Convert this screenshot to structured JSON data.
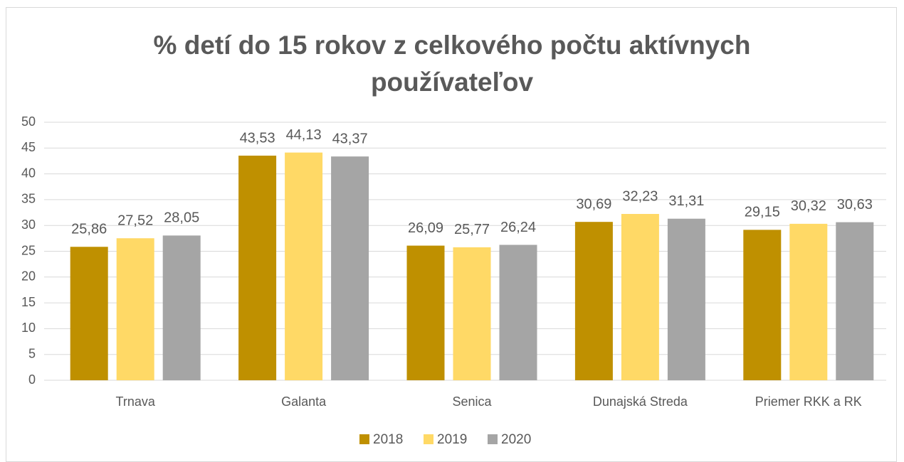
{
  "chart_data": {
    "type": "bar",
    "title": "% detí do 15 rokov z celkového počtu aktívnych používateľov",
    "categories": [
      "Trnava",
      "Galanta",
      "Senica",
      "Dunajská Streda",
      "Priemer RKK a RK"
    ],
    "series": [
      {
        "name": "2018",
        "color": "#bf9000",
        "values": [
          25.86,
          43.53,
          26.09,
          30.69,
          29.15
        ],
        "value_labels": [
          "25,86",
          "43,53",
          "26,09",
          "30,69",
          "29,15"
        ]
      },
      {
        "name": "2019",
        "color": "#ffd966",
        "values": [
          27.52,
          44.13,
          25.77,
          32.23,
          30.32
        ],
        "value_labels": [
          "27,52",
          "44,13",
          "25,77",
          "32,23",
          "30,32"
        ]
      },
      {
        "name": "2020",
        "color": "#a5a5a5",
        "values": [
          28.05,
          43.37,
          26.24,
          31.31,
          30.63
        ],
        "value_labels": [
          "28,05",
          "43,37",
          "26,24",
          "31,31",
          "30,63"
        ]
      }
    ],
    "ylim": [
      0,
      50
    ],
    "yticks": [
      0,
      5,
      10,
      15,
      20,
      25,
      30,
      35,
      40,
      45,
      50
    ],
    "grid": true,
    "legend": "bottom"
  }
}
